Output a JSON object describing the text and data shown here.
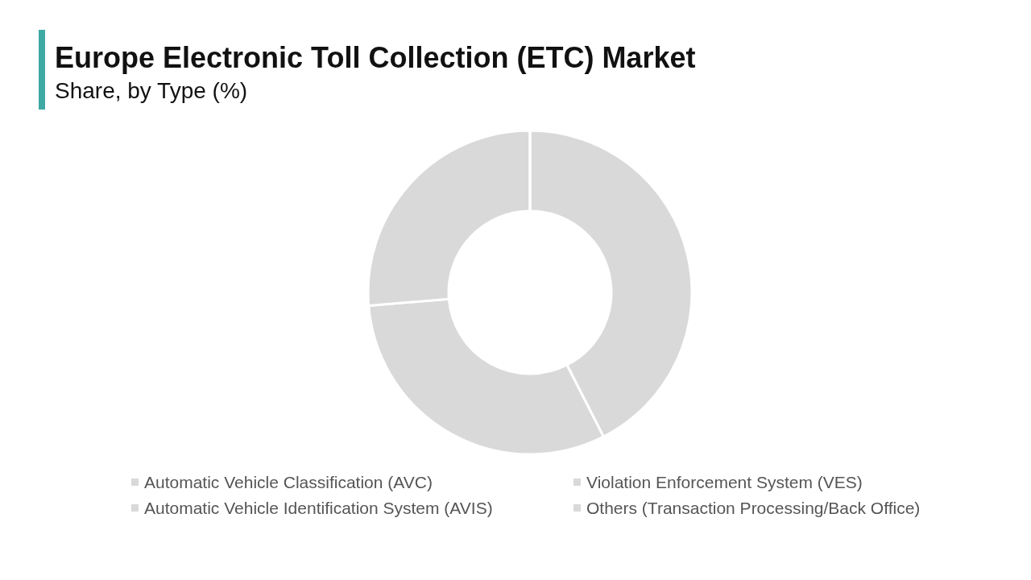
{
  "chart_data": {
    "type": "donut",
    "title": "Europe Electronic Toll Collection (ETC) Market",
    "subtitle": "Share, by Type (%)",
    "categories": [
      "Automatic Vehicle Classification (AVC)",
      "Violation Enforcement System (VES)",
      "Automatic Vehicle Identification System (AVIS)",
      "Others (Transaction Processing/Back Office)"
    ],
    "values": [
      42.5,
      31.2,
      26.3,
      0
    ],
    "colors": [
      "#d9d9d9",
      "#d9d9d9",
      "#d9d9d9",
      "#d9d9d9"
    ],
    "legend": "bottom"
  }
}
